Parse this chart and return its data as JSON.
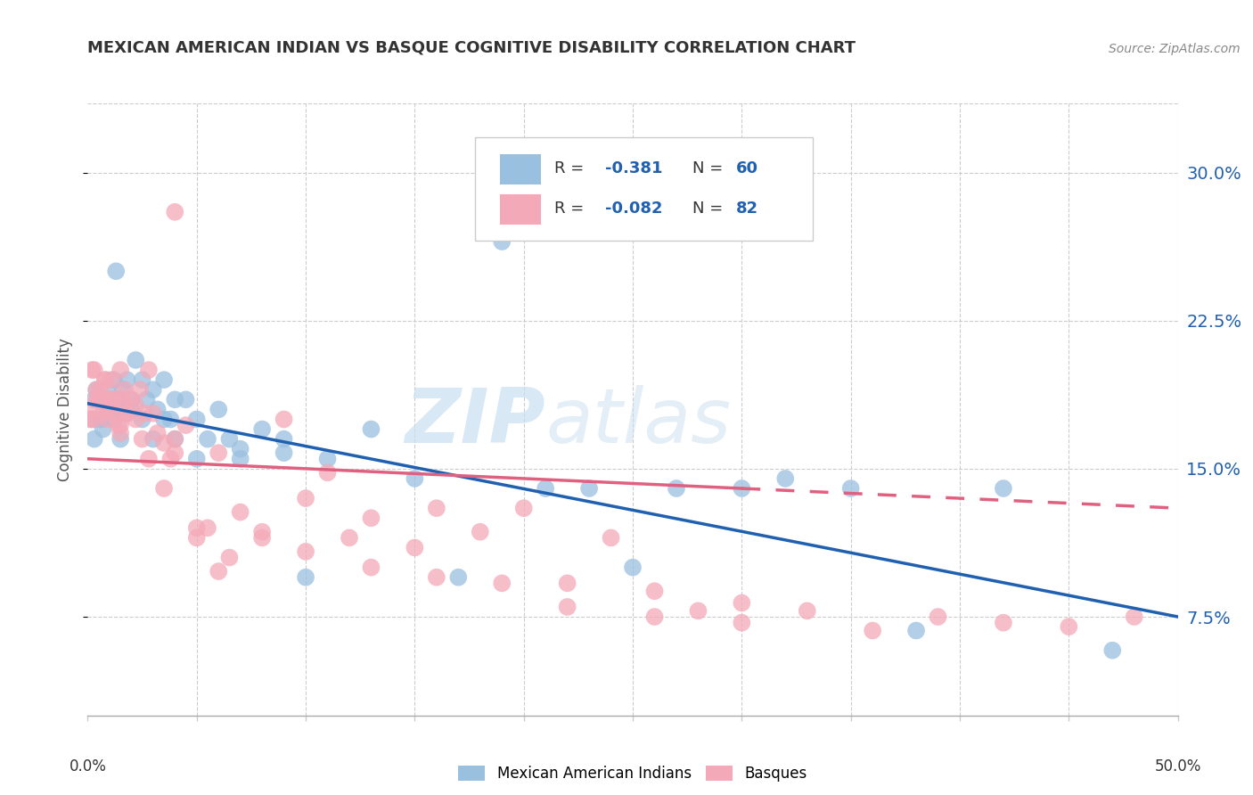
{
  "title": "MEXICAN AMERICAN INDIAN VS BASQUE COGNITIVE DISABILITY CORRELATION CHART",
  "source": "Source: ZipAtlas.com",
  "ylabel": "Cognitive Disability",
  "ytick_labels": [
    "7.5%",
    "15.0%",
    "22.5%",
    "30.0%"
  ],
  "ytick_values": [
    0.075,
    0.15,
    0.225,
    0.3
  ],
  "xlim": [
    0.0,
    0.5
  ],
  "ylim": [
    0.025,
    0.335
  ],
  "legend_blue_R": "R = -0.381",
  "legend_blue_N": "N = 60",
  "legend_pink_R": "R = -0.082",
  "legend_pink_N": "N = 82",
  "legend_label_blue": "Mexican American Indians",
  "legend_label_pink": "Basques",
  "color_blue": "#9ac0e0",
  "color_pink": "#f4a9b8",
  "color_blue_line": "#2060b0",
  "color_pink_line": "#e06080",
  "color_text_blue": "#2060b0",
  "watermark_zip": "ZIP",
  "watermark_atlas": "atlas",
  "blue_points_x": [
    0.002,
    0.003,
    0.003,
    0.004,
    0.005,
    0.006,
    0.007,
    0.008,
    0.009,
    0.01,
    0.011,
    0.012,
    0.013,
    0.014,
    0.015,
    0.016,
    0.018,
    0.02,
    0.022,
    0.025,
    0.027,
    0.03,
    0.032,
    0.035,
    0.038,
    0.04,
    0.045,
    0.05,
    0.055,
    0.06,
    0.065,
    0.07,
    0.08,
    0.09,
    0.1,
    0.11,
    0.13,
    0.15,
    0.17,
    0.19,
    0.21,
    0.23,
    0.25,
    0.27,
    0.3,
    0.32,
    0.35,
    0.38,
    0.42,
    0.47,
    0.012,
    0.015,
    0.02,
    0.025,
    0.03,
    0.035,
    0.04,
    0.05,
    0.07,
    0.09
  ],
  "blue_points_y": [
    0.175,
    0.165,
    0.185,
    0.19,
    0.185,
    0.175,
    0.17,
    0.185,
    0.19,
    0.18,
    0.185,
    0.195,
    0.25,
    0.185,
    0.18,
    0.19,
    0.195,
    0.185,
    0.205,
    0.195,
    0.185,
    0.19,
    0.18,
    0.195,
    0.175,
    0.185,
    0.185,
    0.175,
    0.165,
    0.18,
    0.165,
    0.16,
    0.17,
    0.165,
    0.095,
    0.155,
    0.17,
    0.145,
    0.095,
    0.265,
    0.14,
    0.14,
    0.1,
    0.14,
    0.14,
    0.145,
    0.14,
    0.068,
    0.14,
    0.058,
    0.175,
    0.165,
    0.18,
    0.175,
    0.165,
    0.175,
    0.165,
    0.155,
    0.155,
    0.158
  ],
  "pink_points_x": [
    0.001,
    0.002,
    0.003,
    0.003,
    0.004,
    0.005,
    0.006,
    0.007,
    0.008,
    0.009,
    0.01,
    0.011,
    0.012,
    0.013,
    0.014,
    0.015,
    0.016,
    0.017,
    0.018,
    0.02,
    0.022,
    0.024,
    0.026,
    0.028,
    0.03,
    0.032,
    0.035,
    0.038,
    0.04,
    0.045,
    0.05,
    0.055,
    0.06,
    0.065,
    0.07,
    0.08,
    0.09,
    0.1,
    0.11,
    0.12,
    0.13,
    0.15,
    0.16,
    0.18,
    0.2,
    0.22,
    0.24,
    0.26,
    0.28,
    0.3,
    0.003,
    0.005,
    0.007,
    0.009,
    0.012,
    0.015,
    0.018,
    0.022,
    0.028,
    0.035,
    0.04,
    0.05,
    0.06,
    0.08,
    0.1,
    0.13,
    0.16,
    0.19,
    0.22,
    0.26,
    0.3,
    0.33,
    0.36,
    0.39,
    0.42,
    0.45,
    0.48,
    0.004,
    0.008,
    0.015,
    0.025,
    0.04
  ],
  "pink_points_y": [
    0.175,
    0.2,
    0.2,
    0.18,
    0.19,
    0.185,
    0.19,
    0.185,
    0.195,
    0.185,
    0.18,
    0.195,
    0.185,
    0.178,
    0.172,
    0.2,
    0.185,
    0.19,
    0.178,
    0.185,
    0.182,
    0.19,
    0.178,
    0.2,
    0.178,
    0.168,
    0.14,
    0.155,
    0.165,
    0.172,
    0.12,
    0.12,
    0.158,
    0.105,
    0.128,
    0.118,
    0.175,
    0.135,
    0.148,
    0.115,
    0.125,
    0.11,
    0.13,
    0.118,
    0.13,
    0.092,
    0.115,
    0.088,
    0.078,
    0.082,
    0.175,
    0.185,
    0.178,
    0.175,
    0.185,
    0.172,
    0.178,
    0.175,
    0.155,
    0.163,
    0.158,
    0.115,
    0.098,
    0.115,
    0.108,
    0.1,
    0.095,
    0.092,
    0.08,
    0.075,
    0.072,
    0.078,
    0.068,
    0.075,
    0.072,
    0.07,
    0.075,
    0.185,
    0.195,
    0.168,
    0.165,
    0.28
  ]
}
